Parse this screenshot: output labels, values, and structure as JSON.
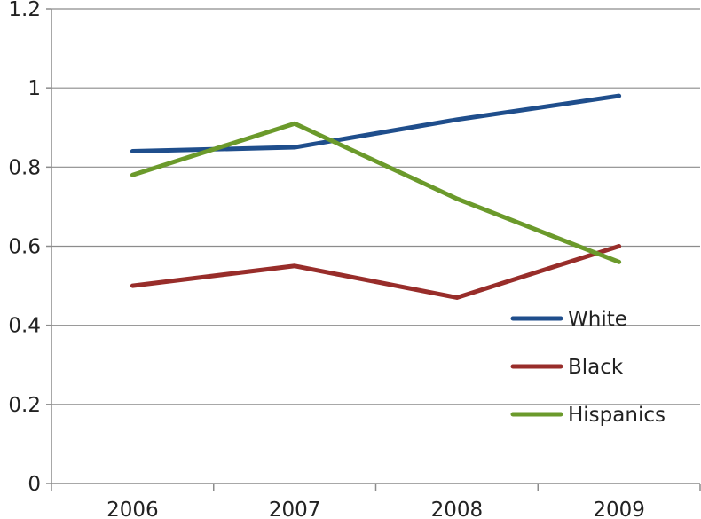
{
  "chart_data": {
    "type": "line",
    "title": "",
    "xlabel": "",
    "ylabel": "",
    "categories": [
      "2006",
      "2007",
      "2008",
      "2009"
    ],
    "ylim": [
      0,
      1.2
    ],
    "yticks": [
      0,
      0.2,
      0.4,
      0.6,
      0.8,
      1,
      1.2
    ],
    "ytick_labels": [
      "0",
      "0.2",
      "0.4",
      "0.6",
      "0.8",
      "1",
      "1.2"
    ],
    "grid": true,
    "legend_position": "bottom-right",
    "series": [
      {
        "name": "White",
        "color": "#1F4E8C",
        "values": [
          0.84,
          0.85,
          0.92,
          0.98
        ]
      },
      {
        "name": "Black",
        "color": "#982D2A",
        "values": [
          0.5,
          0.55,
          0.47,
          0.6
        ]
      },
      {
        "name": "Hispanics",
        "color": "#6B9A2B",
        "values": [
          0.78,
          0.91,
          0.72,
          0.56
        ]
      }
    ]
  }
}
